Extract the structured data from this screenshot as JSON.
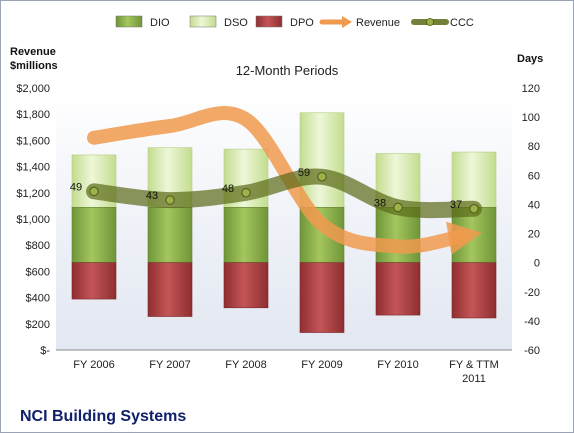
{
  "chart_data": {
    "type": "bar",
    "subtitle": "12-Month Periods",
    "company": "NCI Building Systems",
    "left_axis_label": [
      "Revenue",
      "$millions"
    ],
    "right_axis_label": "Days",
    "categories": [
      [
        "FY 2006"
      ],
      [
        "FY 2007"
      ],
      [
        "FY 2008"
      ],
      [
        "FY 2009"
      ],
      [
        "FY 2010"
      ],
      [
        "FY & TTM",
        "2011"
      ]
    ],
    "left_ylim": [
      0,
      2000
    ],
    "left_ticks": [
      0,
      200,
      400,
      600,
      800,
      1000,
      1200,
      1400,
      1600,
      1800,
      2000
    ],
    "left_tick_labels": [
      "$-",
      "$200",
      "$400",
      "$600",
      "$800",
      "$1,000",
      "$1,200",
      "$1,400",
      "$1,600",
      "$1,800",
      "$2,000"
    ],
    "right_ylim": [
      -60,
      120
    ],
    "right_ticks": [
      -60,
      -40,
      -20,
      0,
      20,
      40,
      60,
      80,
      100,
      120
    ],
    "grid": false,
    "legend_position": "top",
    "series": [
      {
        "name": "DIO",
        "kind": "stacked-bar",
        "axis": "right",
        "color": "#8db04e",
        "values": [
          38,
          38,
          38,
          38,
          38,
          38
        ]
      },
      {
        "name": "DSO",
        "kind": "stacked-bar",
        "axis": "right",
        "color": "#d7eab0",
        "values": [
          36,
          41,
          40,
          65,
          37,
          38
        ]
      },
      {
        "name": "DPO",
        "kind": "negative-bar",
        "axis": "right",
        "color": "#b9484a",
        "values": [
          -25,
          -37,
          -31,
          -48,
          -36,
          -38
        ]
      },
      {
        "name": "Revenue",
        "kind": "smooth-line",
        "axis": "left",
        "color": "#f09a4e",
        "values": [
          1620,
          1710,
          1760,
          960,
          790,
          870
        ]
      },
      {
        "name": "CCC",
        "kind": "smooth-line",
        "axis": "right",
        "color": "#6b7a22",
        "values": [
          49,
          43,
          48,
          59,
          38,
          37
        ]
      }
    ],
    "data_labels": [
      "49",
      "43",
      "48",
      "59",
      "38",
      "37"
    ]
  }
}
